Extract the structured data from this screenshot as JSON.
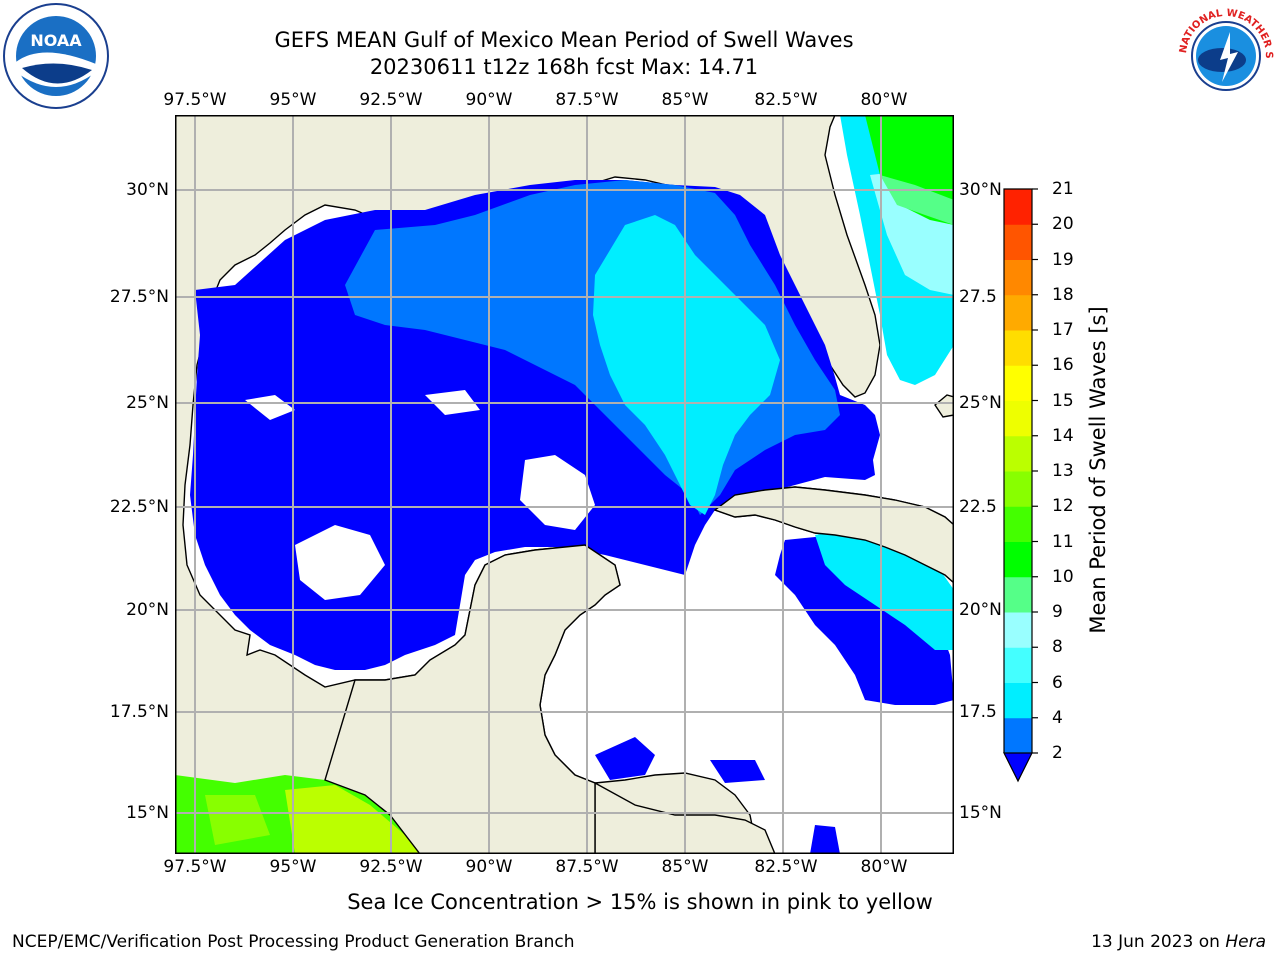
{
  "header": {
    "title_line1": "GEFS MEAN Gulf of Mexico Mean Period of Swell Waves",
    "title_line2": "20230611 t12z 168h fcst   Max: 14.71"
  },
  "map": {
    "lon_labels": [
      "97.5°W",
      "95°W",
      "92.5°W",
      "90°W",
      "87.5°W",
      "85°W",
      "82.5°W",
      "80°W"
    ],
    "lat_labels_left": [
      "30°N",
      "27.5°N",
      "25°N",
      "22.5°N",
      "20°N",
      "17.5°N",
      "15°N"
    ],
    "lat_labels_right": [
      "30°N",
      "27.5",
      "25°N",
      "22.5",
      "20°N",
      "17.5",
      "15°N"
    ],
    "land_color": "#eeeedc",
    "ocean_color": "#ffffff",
    "grid_color": "#b0b0b0"
  },
  "colorbar": {
    "label": "Mean Period of Swell Waves [s]",
    "ticks": [
      "2",
      "4",
      "6",
      "8",
      "9",
      "10",
      "11",
      "12",
      "13",
      "14",
      "15",
      "16",
      "17",
      "18",
      "19",
      "20",
      "21"
    ],
    "colors": [
      "#0000ff",
      "#0077ff",
      "#00eeff",
      "#44ffff",
      "#99ffff",
      "#55ff88",
      "#00ff00",
      "#44ff00",
      "#88ff00",
      "#bbff00",
      "#eeff00",
      "#ffff00",
      "#ffdd00",
      "#ffaa00",
      "#ff8800",
      "#ff5500",
      "#ff2200",
      "#ff0000"
    ]
  },
  "note": "Sea Ice Concentration > 15% is shown in pink to yellow",
  "footer": {
    "left": "NCEP/EMC/Verification Post Processing Product Generation Branch",
    "right_date": "13 Jun 2023 on ",
    "right_machine": "Hera"
  },
  "logos": {
    "noaa_text": "NOAA",
    "nws_text": "NATIONAL WEATHER SERVICE"
  }
}
